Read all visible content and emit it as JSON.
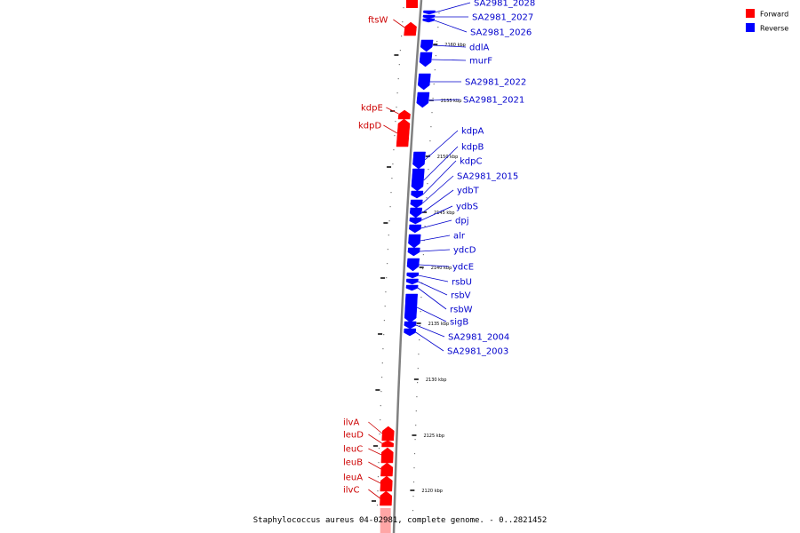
{
  "caption": "Staphylococcus aureus 04-02981, complete genome. - 0..2821452",
  "legend": [
    {
      "label": "Forward",
      "color": "#ff0000"
    },
    {
      "label": "Reverse",
      "color": "#0000ff"
    }
  ],
  "colors": {
    "forward": "#ff0000",
    "reverse": "#0000ff",
    "forward_label": "#cc0000",
    "reverse_label": "#0000cc",
    "backbone": "#808080"
  },
  "scale_unit": "kbp",
  "scale_ticks": [
    2160,
    2155,
    2150,
    2145,
    2140,
    2135,
    2130,
    2125,
    2120
  ],
  "genes": [
    {
      "name": "SA2981_2028",
      "strand": "reverse"
    },
    {
      "name": "SA2981_2027",
      "strand": "reverse"
    },
    {
      "name": "SA2981_2026",
      "strand": "reverse"
    },
    {
      "name": "ftsW",
      "strand": "forward"
    },
    {
      "name": "ddlA",
      "strand": "reverse"
    },
    {
      "name": "murF",
      "strand": "reverse"
    },
    {
      "name": "SA2981_2022",
      "strand": "reverse"
    },
    {
      "name": "SA2981_2021",
      "strand": "reverse"
    },
    {
      "name": "kdpE",
      "strand": "forward"
    },
    {
      "name": "kdpD",
      "strand": "forward"
    },
    {
      "name": "kdpA",
      "strand": "reverse"
    },
    {
      "name": "kdpB",
      "strand": "reverse"
    },
    {
      "name": "kdpC",
      "strand": "reverse"
    },
    {
      "name": "SA2981_2015",
      "strand": "reverse"
    },
    {
      "name": "ydbT",
      "strand": "reverse"
    },
    {
      "name": "ydbS",
      "strand": "reverse"
    },
    {
      "name": "dpj",
      "strand": "reverse"
    },
    {
      "name": "alr",
      "strand": "reverse"
    },
    {
      "name": "ydcD",
      "strand": "reverse"
    },
    {
      "name": "ydcE",
      "strand": "reverse"
    },
    {
      "name": "rsbU",
      "strand": "reverse"
    },
    {
      "name": "rsbV",
      "strand": "reverse"
    },
    {
      "name": "rsbW",
      "strand": "reverse"
    },
    {
      "name": "sigB",
      "strand": "reverse"
    },
    {
      "name": "SA2981_2004",
      "strand": "reverse"
    },
    {
      "name": "SA2981_2003",
      "strand": "reverse"
    },
    {
      "name": "ilvA",
      "strand": "forward"
    },
    {
      "name": "leuD",
      "strand": "forward"
    },
    {
      "name": "leuC",
      "strand": "forward"
    },
    {
      "name": "leuB",
      "strand": "forward"
    },
    {
      "name": "leuA",
      "strand": "forward"
    },
    {
      "name": "ilvC",
      "strand": "forward"
    }
  ]
}
